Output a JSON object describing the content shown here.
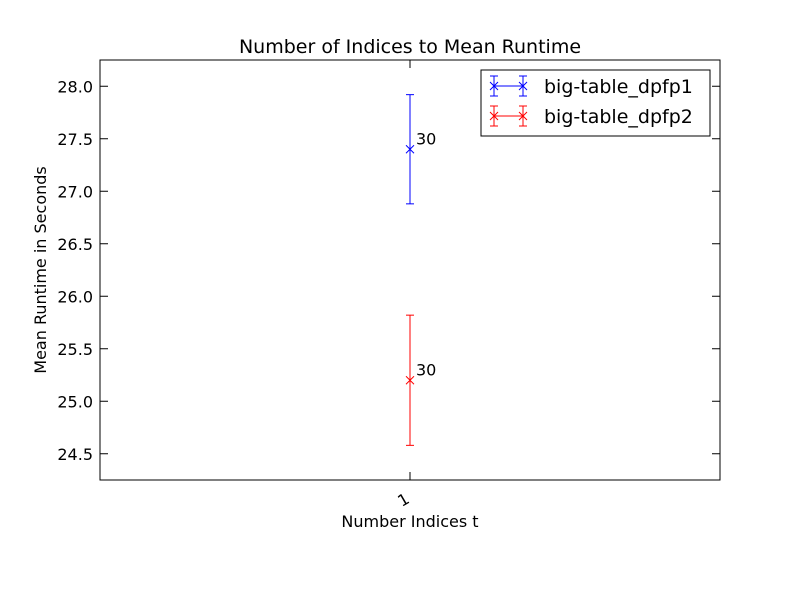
{
  "chart_data": {
    "type": "scatter",
    "title": "Number of Indices to Mean Runtime",
    "xlabel": "Number Indices t",
    "ylabel": "Mean Runtime in Seconds",
    "categories": [
      "1"
    ],
    "ylim": [
      24.25,
      28.25
    ],
    "yticks": [
      "24.5",
      "25.0",
      "25.5",
      "26.0",
      "26.5",
      "27.0",
      "27.5",
      "28.0"
    ],
    "grid": false,
    "legend_position": "top-right",
    "series": [
      {
        "name": "big-table_dpfp1",
        "color": "#0000ff",
        "marker": "x",
        "x": [
          "1"
        ],
        "values": [
          27.4
        ],
        "error": [
          0.52
        ],
        "annotations": [
          "30"
        ]
      },
      {
        "name": "big-table_dpfp2",
        "color": "#ff0000",
        "marker": "x",
        "x": [
          "1"
        ],
        "values": [
          25.2
        ],
        "error": [
          0.62
        ],
        "annotations": [
          "30"
        ]
      }
    ]
  }
}
